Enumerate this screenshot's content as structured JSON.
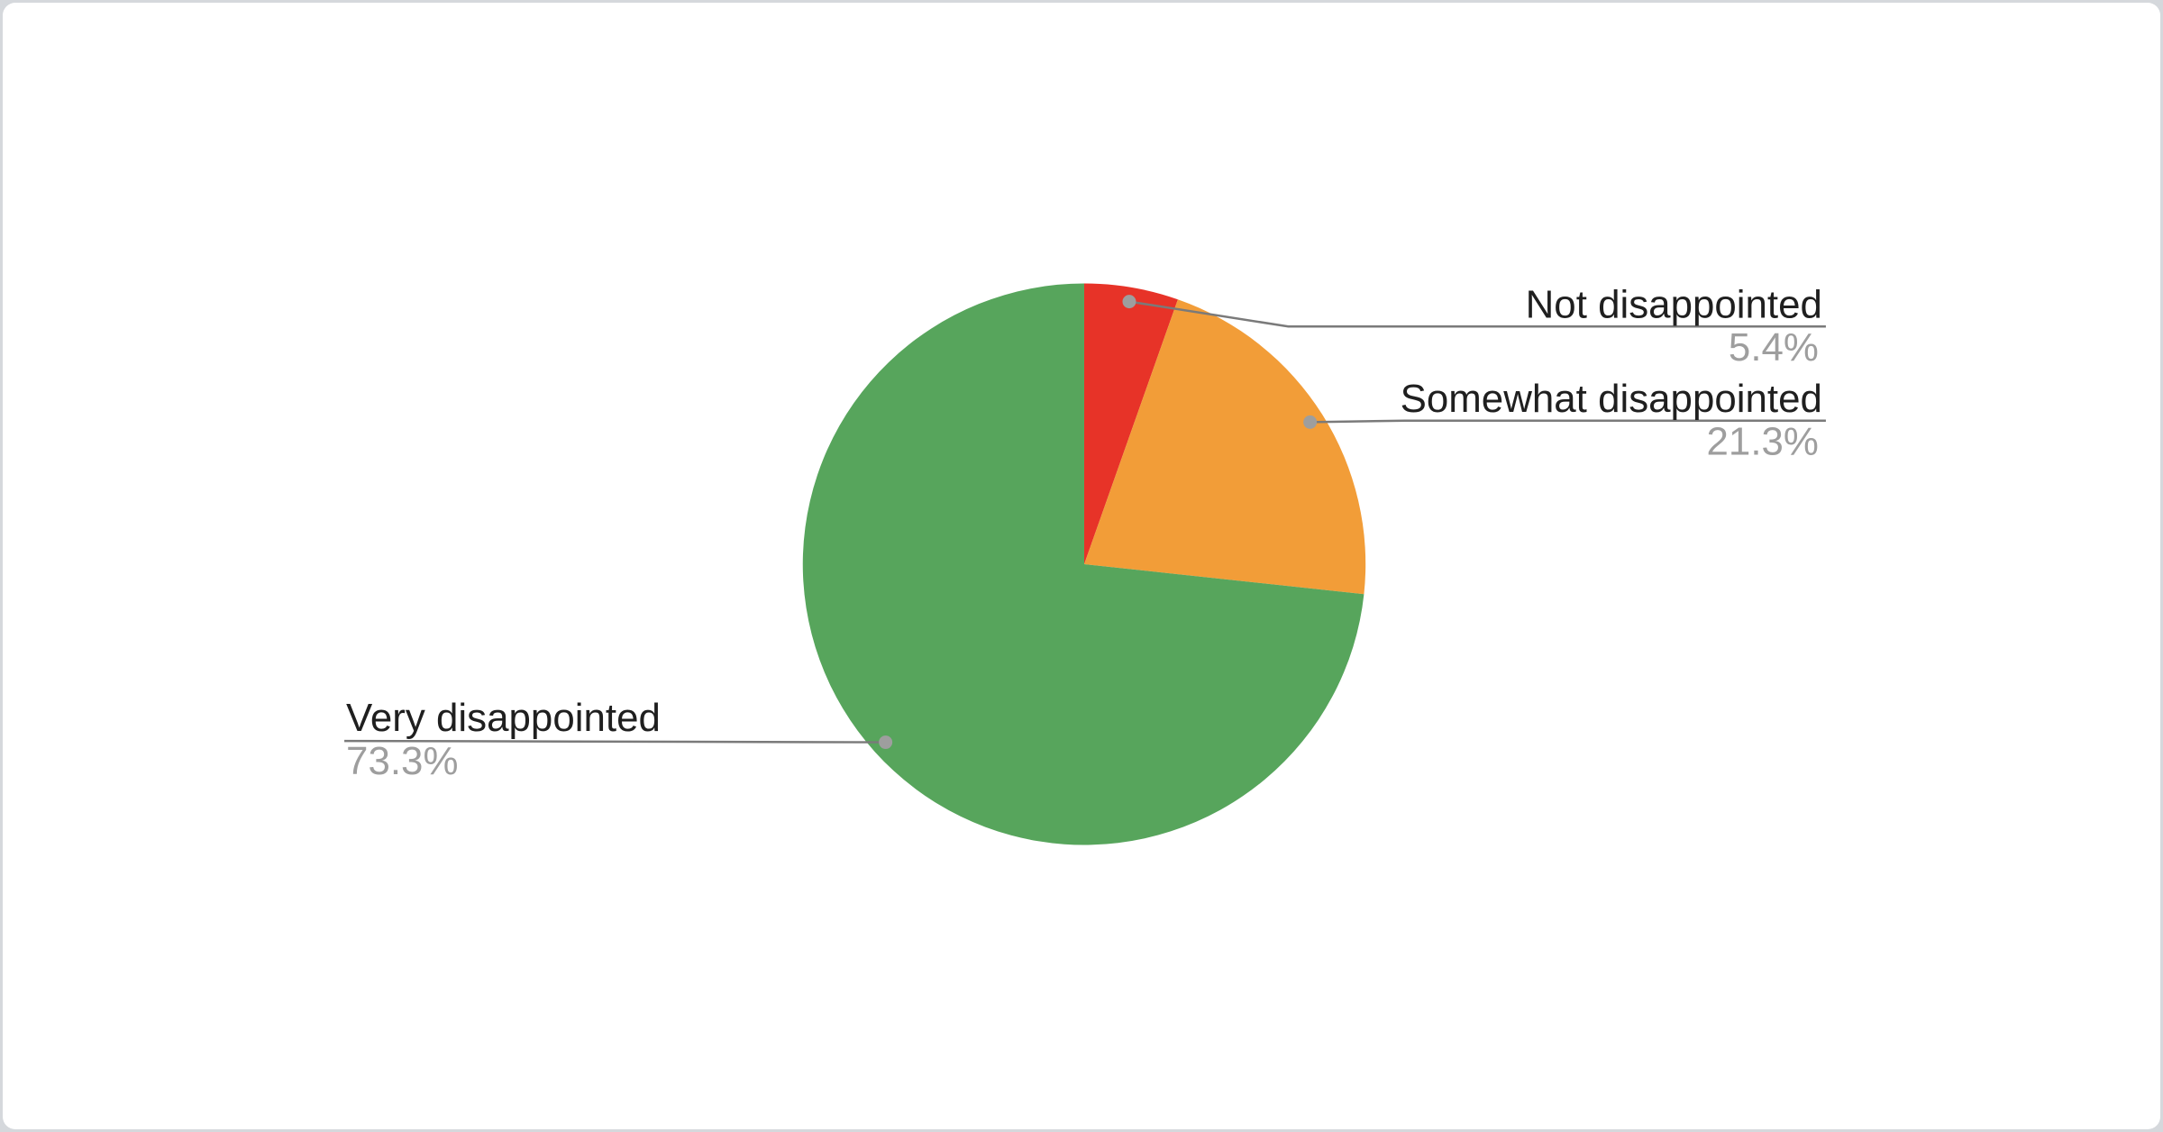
{
  "page": {
    "background_color": "#d5d8dc",
    "card_background_color": "#ffffff"
  },
  "chart_data": {
    "type": "pie",
    "title": "",
    "legend": "none",
    "start_angle_deg": 0,
    "direction": "clockwise",
    "slices": [
      {
        "label": "Not disappointed",
        "value": 5.4,
        "display": "5.4%",
        "color": "#e73328"
      },
      {
        "label": "Somewhat disappointed",
        "value": 21.3,
        "display": "21.3%",
        "color": "#f29d38"
      },
      {
        "label": "Very disappointed",
        "value": 73.3,
        "display": "73.3%",
        "color": "#57a55c"
      }
    ],
    "label_text_color": "#1f1f1f",
    "value_text_color": "#9e9e9e",
    "leader_line_color": "#7a7a7a",
    "callout_dot_color": "#9e9e9e"
  }
}
